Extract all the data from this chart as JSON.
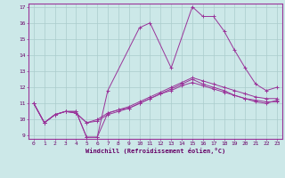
{
  "xlabel": "Windchill (Refroidissement éolien,°C)",
  "bg_color": "#cce8e8",
  "grid_color": "#aacccc",
  "line_color": "#993399",
  "xlim": [
    -0.5,
    23.5
  ],
  "ylim": [
    8.8,
    17.2
  ],
  "xticks": [
    0,
    1,
    2,
    3,
    4,
    5,
    6,
    7,
    8,
    9,
    10,
    11,
    12,
    13,
    14,
    15,
    16,
    17,
    18,
    19,
    20,
    21,
    22,
    23
  ],
  "yticks": [
    9,
    10,
    11,
    12,
    13,
    14,
    15,
    16,
    17
  ],
  "lines": [
    {
      "x": [
        0,
        1,
        2,
        3,
        4,
        5,
        6,
        7,
        10,
        11,
        13,
        15,
        16,
        17,
        18,
        19,
        20,
        21,
        22,
        23
      ],
      "y": [
        11.0,
        9.8,
        10.3,
        10.5,
        10.5,
        8.9,
        8.9,
        11.8,
        15.7,
        16.0,
        13.2,
        17.0,
        16.4,
        16.4,
        15.5,
        14.3,
        13.2,
        12.2,
        11.8,
        12.0
      ]
    },
    {
      "x": [
        0,
        1,
        2,
        3,
        4,
        5,
        6,
        7,
        8,
        9,
        10,
        11,
        12,
        13,
        14,
        15,
        16,
        17,
        18,
        19,
        20,
        21,
        22,
        23
      ],
      "y": [
        11.0,
        9.8,
        10.3,
        10.5,
        10.5,
        8.9,
        8.9,
        10.4,
        10.6,
        10.7,
        11.0,
        11.3,
        11.6,
        11.9,
        12.2,
        12.5,
        12.2,
        12.0,
        11.8,
        11.5,
        11.3,
        11.1,
        11.0,
        11.2
      ]
    },
    {
      "x": [
        0,
        1,
        2,
        3,
        4,
        5,
        6,
        7,
        8,
        9,
        10,
        11,
        12,
        13,
        14,
        15,
        16,
        17,
        18,
        19,
        20,
        21,
        22,
        23
      ],
      "y": [
        11.0,
        9.8,
        10.3,
        10.5,
        10.4,
        9.8,
        10.0,
        10.4,
        10.6,
        10.8,
        11.1,
        11.4,
        11.7,
        12.0,
        12.3,
        12.6,
        12.4,
        12.2,
        12.0,
        11.8,
        11.6,
        11.4,
        11.3,
        11.3
      ]
    },
    {
      "x": [
        0,
        1,
        2,
        3,
        4,
        5,
        6,
        7,
        8,
        9,
        10,
        11,
        12,
        13,
        14,
        15,
        16,
        17,
        18,
        19,
        20,
        21,
        22,
        23
      ],
      "y": [
        11.0,
        9.8,
        10.3,
        10.5,
        10.4,
        9.8,
        9.9,
        10.3,
        10.5,
        10.7,
        11.0,
        11.3,
        11.6,
        11.8,
        12.1,
        12.3,
        12.1,
        11.9,
        11.7,
        11.5,
        11.3,
        11.2,
        11.1,
        11.1
      ]
    }
  ]
}
